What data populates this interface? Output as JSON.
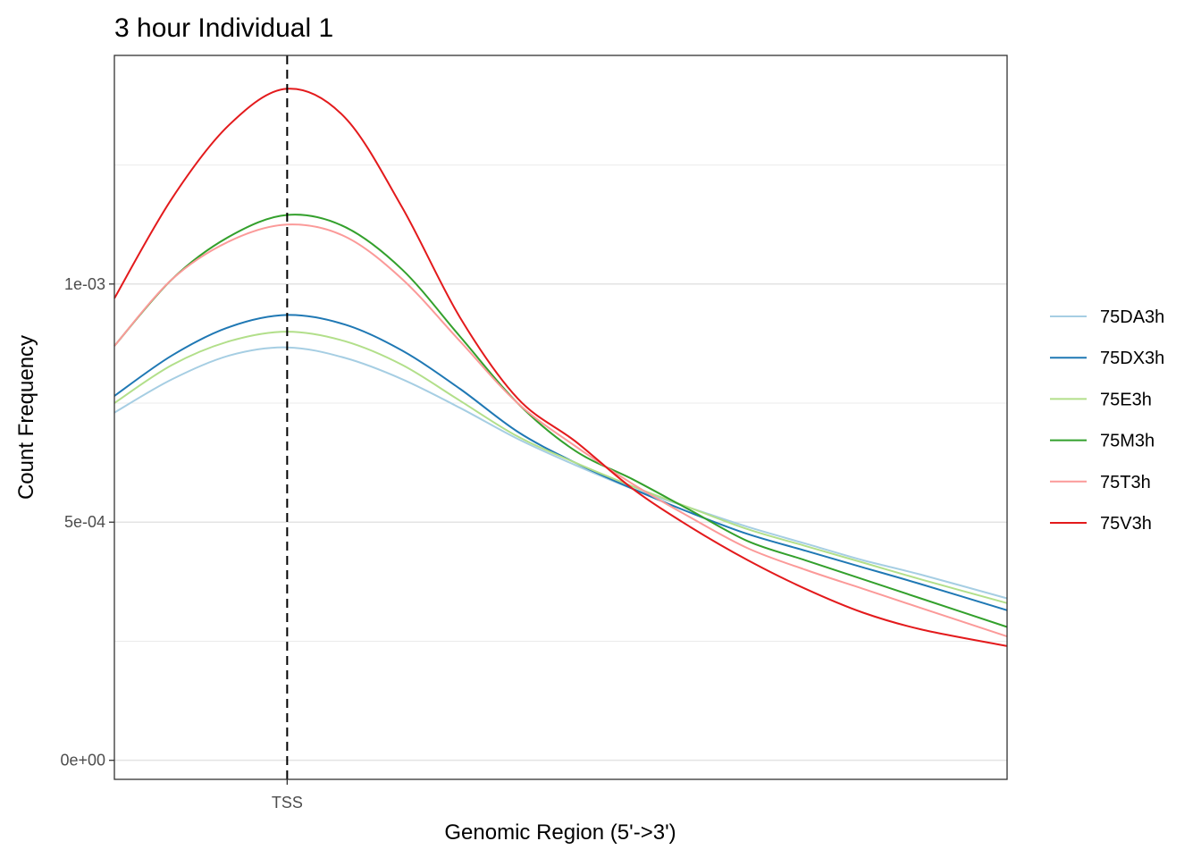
{
  "chart_data": {
    "type": "line",
    "title": "3 hour Individual 1",
    "xlabel": "Genomic Region (5'->3')",
    "ylabel": "Count Frequency",
    "x_ticks": [
      {
        "x": 0,
        "label": "TSS"
      }
    ],
    "y_ticks": [
      {
        "y": 0,
        "label": "0e+00"
      },
      {
        "y": 0.0005,
        "label": "5e-04"
      },
      {
        "y": 0.001,
        "label": "1e-03"
      }
    ],
    "y_minor_gridlines": [
      0.00025,
      0.00075,
      0.00125
    ],
    "xlim": [
      -300,
      1250
    ],
    "ylim": [
      -4e-05,
      0.00148
    ],
    "grid": true,
    "vline": {
      "x": 0,
      "style": "dashed"
    },
    "legend_position": "right",
    "series": [
      {
        "name": "75DA3h",
        "color": "#A6CEE3",
        "x": [
          -300,
          -200,
          -100,
          0,
          100,
          200,
          300,
          400,
          500,
          600,
          700,
          800,
          900,
          1000,
          1100,
          1250
        ],
        "y": [
          0.00073,
          0.0008,
          0.00085,
          0.000867,
          0.000845,
          0.0008,
          0.00074,
          0.000675,
          0.00062,
          0.00057,
          0.00053,
          0.00049,
          0.000455,
          0.00042,
          0.00039,
          0.00034
        ]
      },
      {
        "name": "75DX3h",
        "color": "#1F78B4",
        "x": [
          -300,
          -200,
          -100,
          0,
          100,
          200,
          300,
          400,
          500,
          600,
          700,
          800,
          900,
          1000,
          1100,
          1250
        ],
        "y": [
          0.000765,
          0.00085,
          0.00091,
          0.000935,
          0.000915,
          0.00086,
          0.00078,
          0.00069,
          0.000625,
          0.00057,
          0.00052,
          0.000475,
          0.00044,
          0.000405,
          0.00037,
          0.000315
        ]
      },
      {
        "name": "75E3h",
        "color": "#B2DF8A",
        "x": [
          -300,
          -200,
          -100,
          0,
          100,
          200,
          300,
          400,
          500,
          600,
          700,
          800,
          900,
          1000,
          1100,
          1250
        ],
        "y": [
          0.00075,
          0.00083,
          0.00088,
          0.0009,
          0.00088,
          0.00083,
          0.000755,
          0.00068,
          0.000625,
          0.000575,
          0.00053,
          0.000485,
          0.00045,
          0.000415,
          0.00038,
          0.00033
        ]
      },
      {
        "name": "75M3h",
        "color": "#33A02C",
        "x": [
          -300,
          -200,
          -100,
          0,
          100,
          200,
          300,
          400,
          500,
          600,
          700,
          800,
          900,
          1000,
          1100,
          1250
        ],
        "y": [
          0.00087,
          0.00101,
          0.0011,
          0.001145,
          0.00112,
          0.00103,
          0.00089,
          0.00075,
          0.00065,
          0.00059,
          0.000525,
          0.00046,
          0.00042,
          0.00038,
          0.00034,
          0.00028
        ]
      },
      {
        "name": "75T3h",
        "color": "#FB9A99",
        "x": [
          -300,
          -200,
          -100,
          0,
          100,
          200,
          300,
          400,
          500,
          600,
          700,
          800,
          900,
          1000,
          1100,
          1250
        ],
        "y": [
          0.00087,
          0.00101,
          0.00109,
          0.001125,
          0.0011,
          0.00101,
          0.00088,
          0.00075,
          0.00066,
          0.00058,
          0.00051,
          0.000445,
          0.0004,
          0.00036,
          0.00032,
          0.00026
        ]
      },
      {
        "name": "75V3h",
        "color": "#E31A1C",
        "x": [
          -300,
          -200,
          -100,
          0,
          100,
          200,
          300,
          400,
          500,
          600,
          700,
          800,
          900,
          1000,
          1100,
          1250
        ],
        "y": [
          0.00097,
          0.00118,
          0.001335,
          0.00141,
          0.00135,
          0.00116,
          0.00093,
          0.00076,
          0.00067,
          0.00057,
          0.00049,
          0.00042,
          0.00036,
          0.00031,
          0.000275,
          0.00024
        ]
      }
    ]
  }
}
